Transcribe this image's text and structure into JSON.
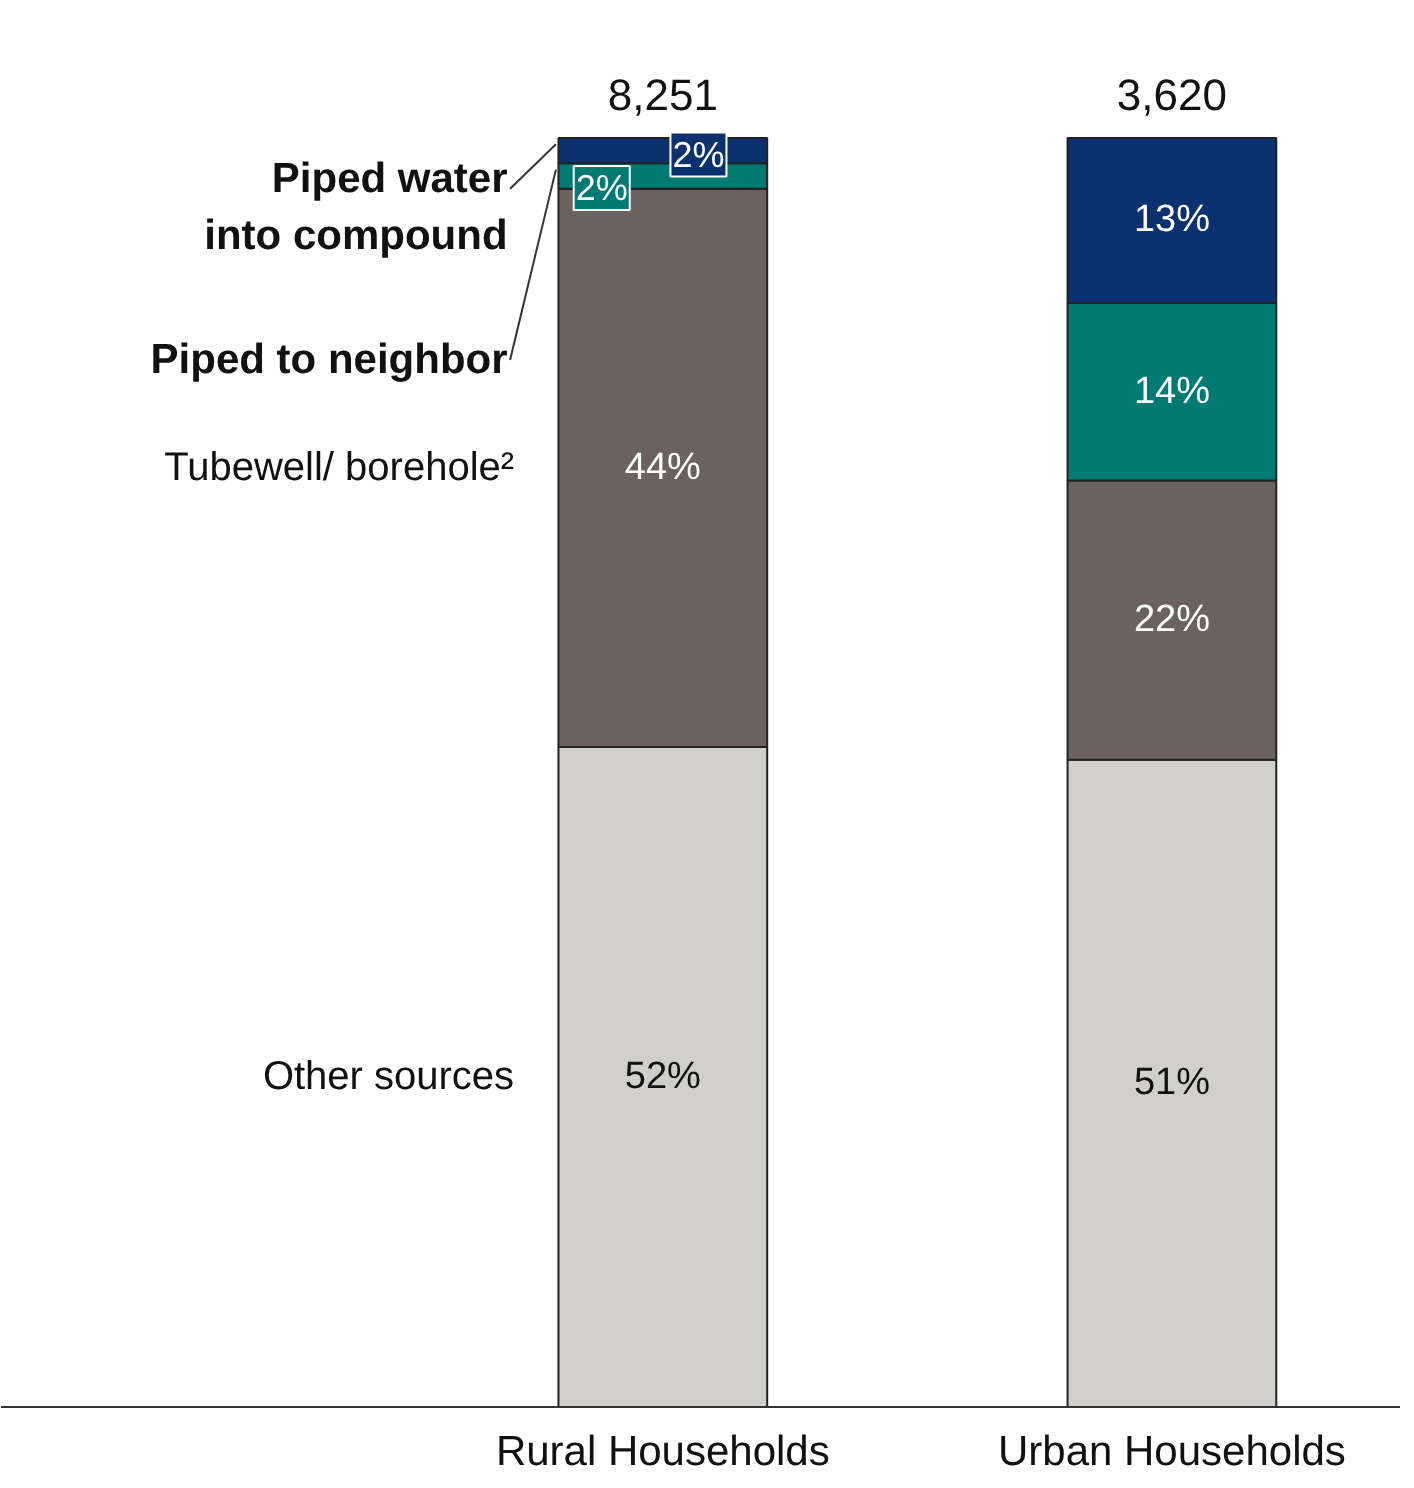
{
  "chart_data": {
    "type": "bar",
    "stacked": true,
    "categories": [
      "Rural Households",
      "Urban Households"
    ],
    "series": [
      {
        "name": "Other sources",
        "color": "#d1cfcb",
        "values": [
          52,
          51
        ],
        "value_labels": [
          "52%",
          "51%"
        ]
      },
      {
        "name": "Tubewell/ borehole²",
        "color": "#6b625f",
        "values": [
          44,
          22
        ],
        "value_labels": [
          "44%",
          "22%"
        ]
      },
      {
        "name": "Piped to neighbor",
        "color": "#007a72",
        "values": [
          2,
          14
        ],
        "value_labels": [
          "2%",
          "14%"
        ]
      },
      {
        "name": "Piped water into compound",
        "color": "#0b3170",
        "values": [
          2,
          13
        ],
        "value_labels": [
          "2%",
          "13%"
        ]
      }
    ],
    "annotations": [
      {
        "text": "8,251",
        "x": "Rural Households",
        "y": 100
      },
      {
        "text": "3,620",
        "x": "Urban Households",
        "y": 100
      }
    ],
    "grid": false
  }
}
